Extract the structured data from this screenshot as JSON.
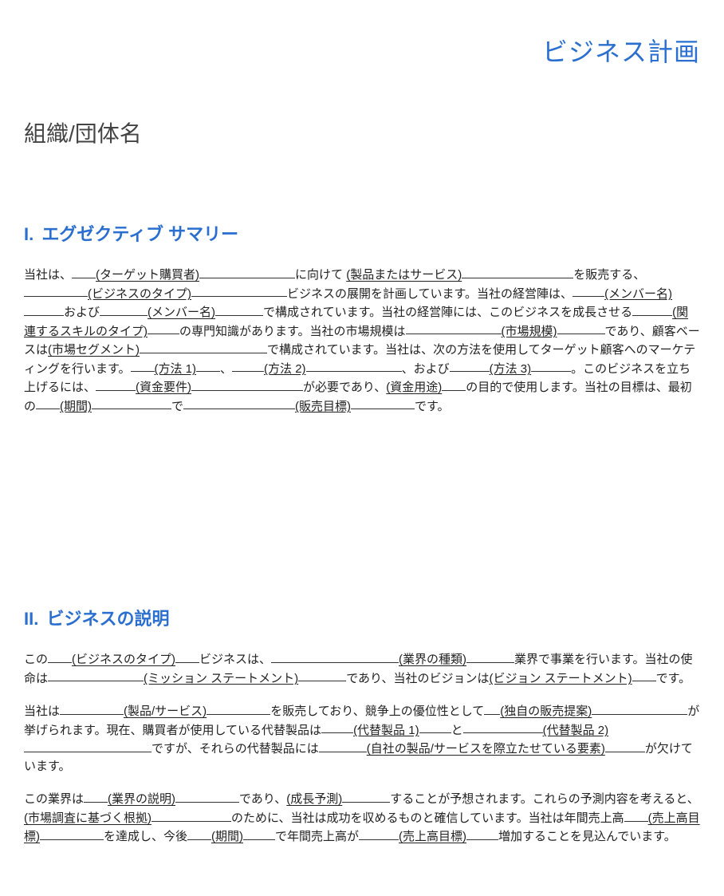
{
  "doc": {
    "title": "ビジネス計画",
    "org_name": "組織/団体名"
  },
  "section1": {
    "heading_prefix": "I.",
    "heading": "エグゼクティブ サマリー",
    "p1": {
      "t1": "当社は、",
      "h1": "(ターゲット購買者)",
      "t2": "に向けて",
      "h2": "(製品またはサービス)",
      "t3": "を販売する、",
      "h3": "(ビジネスのタイプ)",
      "t4": "ビジネスの展開を計画しています。当社の経営陣は、",
      "h4": "(メンバー名)",
      "t5": "および",
      "h5": "(メンバー名)",
      "t6": "で構成されています。当社の経営陣には、このビジネスを成長させる",
      "h6": "(関連するスキルのタイプ)",
      "t7": "の専門知識があります。当社の市場規模は",
      "h7": "(市場規模)",
      "t8": "であり、顧客ベースは",
      "h8": "(市場セグメント)",
      "t9": "で構成されています。当社は、次の方法を使用してターゲット顧客へのマーケティングを行います。",
      "h9": "(方法 1)",
      "t10": "、",
      "h10": "(方法 2)",
      "t11": "、および",
      "h11": "(方法 3)",
      "t12": "。このビジネスを立ち上げるには、",
      "h12": "(資金要件)",
      "t13": "が必要であり、",
      "h13": "(資金用途)",
      "t14": "の目的で使用します。当社の目標は、最初の",
      "h14": "(期間)",
      "t15": "で",
      "h15": "(販売目標)",
      "t16": "です。"
    }
  },
  "section2": {
    "heading_prefix": "II.",
    "heading": "ビジネスの説明",
    "p1": {
      "t1": "この",
      "h1": "(ビジネスのタイプ)",
      "t2": "ビジネスは、",
      "h2": "(業界の種類)",
      "t3": "業界で事業を行います。当社の使命は",
      "h3": "(ミッション ステートメント)",
      "t4": "であり、当社のビジョンは",
      "h4": "(ビジョン ステートメント)",
      "t5": "です。"
    },
    "p2": {
      "t1": "当社は",
      "h1": "(製品/サービス)",
      "t2": "を販売しており、競争上の優位性として",
      "h2": "(独自の販売提案)",
      "t3": "が挙げられます。現在、購買者が使用している代替製品は",
      "h3": "(代替製品 1)",
      "t4": "と",
      "h4": "(代替製品 2)",
      "t5": "ですが、それらの代替製品には",
      "h5": "(自社の製品/サービスを際立たせている要素)",
      "t6": "が欠けています。"
    },
    "p3": {
      "t1": "この業界は",
      "h1": "(業界の説明)",
      "t2": "であり、",
      "h2": "(成長予測)",
      "t3": "することが予想されます。これらの予測内容を考えると、",
      "h3": "(市場調査に基づく根拠)",
      "t4": "のために、当社は成功を収めるものと確信しています。当社は年間売上高",
      "h4": "(売上高目標)",
      "t5": "を達成し、今後",
      "h5": "(期間)",
      "t6": "で年間売上高が",
      "h6": "(売上高目標)",
      "t7": "増加することを見込んでいます。"
    }
  }
}
